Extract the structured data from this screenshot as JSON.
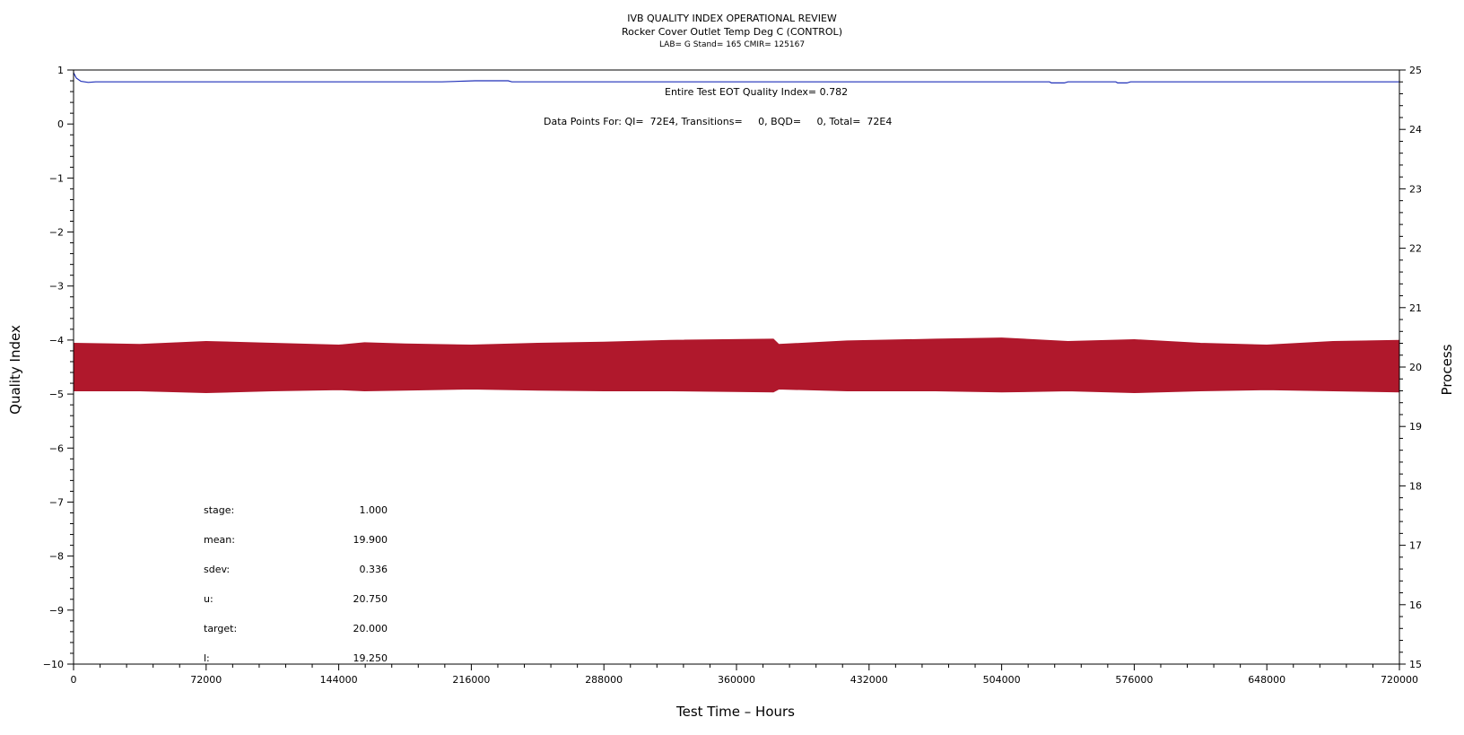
{
  "chart_data": {
    "type": "line",
    "title": "IVB QUALITY INDEX OPERATIONAL REVIEW",
    "subtitle": "Rocker Cover Outlet Temp Deg C (CONTROL)",
    "subtitle2": "LAB= G Stand= 165 CMIR= 125167",
    "xlabel": "Test Time – Hours",
    "ylabel_left": "Quality Index",
    "ylabel_right": "Process",
    "xlim": [
      0,
      720000
    ],
    "ylim_left": [
      -10,
      1
    ],
    "ylim_right": [
      15,
      25
    ],
    "x_ticks": [
      0,
      72000,
      144000,
      216000,
      288000,
      360000,
      432000,
      504000,
      576000,
      648000,
      720000
    ],
    "y_left_ticks": [
      1,
      0,
      -1,
      -2,
      -3,
      -4,
      -5,
      -6,
      -7,
      -8,
      -9,
      -10
    ],
    "y_right_ticks": [
      25,
      24,
      23,
      22,
      21,
      20,
      19,
      18,
      17,
      16,
      15
    ],
    "annotations": {
      "quality_index": "Entire Test EOT Quality Index=   0.782",
      "data_points": "Data Points For: QI=  72E4, Transitions=     0, BQD=     0, Total=  72E4"
    },
    "series": [
      {
        "name": "Quality Index",
        "axis": "left",
        "color": "#1f2fb8",
        "x": [
          0,
          1500,
          4000,
          8000,
          12000,
          60000,
          200000,
          218000,
          236000,
          238000,
          400000,
          530000,
          531000,
          538000,
          540000,
          566000,
          567000,
          572000,
          574000,
          720000
        ],
        "y": [
          0.95,
          0.85,
          0.79,
          0.77,
          0.78,
          0.78,
          0.78,
          0.8,
          0.8,
          0.78,
          0.78,
          0.78,
          0.76,
          0.76,
          0.78,
          0.78,
          0.76,
          0.76,
          0.78,
          0.78
        ]
      },
      {
        "name": "Process",
        "axis": "right",
        "color": "#b0182c",
        "type": "band",
        "x": [
          0,
          36000,
          72000,
          108000,
          144000,
          158000,
          180000,
          216000,
          252000,
          288000,
          324000,
          380000,
          383000,
          420000,
          468000,
          504000,
          540000,
          576000,
          612000,
          648000,
          684000,
          720000
        ],
        "upper": [
          20.4,
          20.38,
          20.43,
          20.4,
          20.37,
          20.41,
          20.39,
          20.37,
          20.4,
          20.42,
          20.45,
          20.47,
          20.38,
          20.44,
          20.47,
          20.49,
          20.43,
          20.46,
          20.4,
          20.37,
          20.43,
          20.45
        ],
        "lower": [
          19.6,
          19.6,
          19.57,
          19.6,
          19.62,
          19.6,
          19.61,
          19.63,
          19.61,
          19.6,
          19.6,
          19.58,
          19.63,
          19.6,
          19.6,
          19.58,
          19.6,
          19.57,
          19.6,
          19.62,
          19.6,
          19.58
        ]
      }
    ],
    "stats": [
      {
        "label": "stage:",
        "value": "1.000"
      },
      {
        "label": "mean:",
        "value": "19.900"
      },
      {
        "label": "sdev:",
        "value": "0.336"
      },
      {
        "label": "u:",
        "value": "20.750"
      },
      {
        "label": "target:",
        "value": "20.000"
      },
      {
        "label": "l:",
        "value": "19.250"
      }
    ]
  }
}
